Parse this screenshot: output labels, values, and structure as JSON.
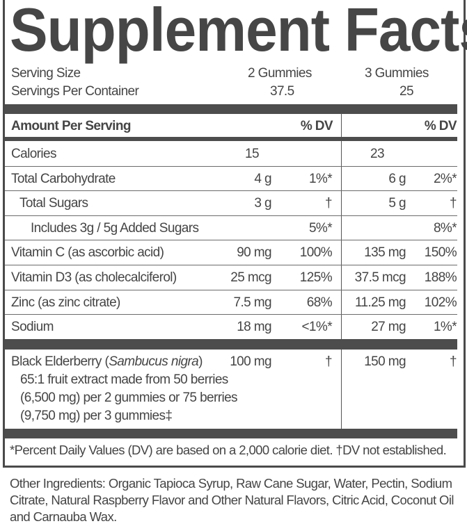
{
  "title": "Supplement Facts",
  "serving": {
    "size_label": "Serving Size",
    "size_1": "2 Gummies",
    "size_2": "3 Gummies",
    "per_container_label": "Servings Per Container",
    "per_container_1": "37.5",
    "per_container_2": "25"
  },
  "header": {
    "amount_label": "Amount Per Serving",
    "dv_1": "% DV",
    "dv_2": "% DV"
  },
  "rows": [
    {
      "name": "Calories",
      "amt1": "15",
      "dv1": "",
      "amt2": "23",
      "dv2": ""
    },
    {
      "name": "Total Carbohydrate",
      "amt1": "4 g",
      "dv1": "1%*",
      "amt2": "6 g",
      "dv2": "2%*"
    },
    {
      "name": "Total Sugars",
      "amt1": "3 g",
      "dv1": "†",
      "amt2": "5 g",
      "dv2": "†"
    },
    {
      "name": "Includes 3g / 5g Added Sugars",
      "amt1": "",
      "dv1": "5%*",
      "amt2": "",
      "dv2": "8%*"
    },
    {
      "name": "Vitamin C (as ascorbic acid)",
      "amt1": "90 mg",
      "dv1": "100%",
      "amt2": "135 mg",
      "dv2": "150%"
    },
    {
      "name": "Vitamin D3 (as cholecalciferol)",
      "amt1": "25 mcg",
      "dv1": "125%",
      "amt2": "37.5 mcg",
      "dv2": "188%"
    },
    {
      "name": "Zinc (as zinc citrate)",
      "amt1": "7.5 mg",
      "dv1": "68%",
      "amt2": "11.25 mg",
      "dv2": "102%"
    },
    {
      "name": "Sodium",
      "amt1": "18 mg",
      "dv1": "<1%*",
      "amt2": "27 mg",
      "dv2": "1%*"
    }
  ],
  "elderberry": {
    "name": "Black Elderberry (",
    "latin": "Sambucus nigra",
    "close": ")",
    "amt1": "100 mg",
    "dv1": "†",
    "amt2": "150 mg",
    "dv2": "†",
    "desc": [
      "65:1 fruit extract made from 50 berries",
      "(6,500 mg) per 2 gummies or 75 berries",
      "(9,750 mg) per 3 gummies‡"
    ]
  },
  "footnote": "*Percent Daily Values (DV) are based on a 2,000 calorie diet. †DV not established.",
  "other_ingredients": "Other Ingredients: Organic Tapioca Syrup, Raw Cane Sugar, Water, Pectin, Sodium Citrate, Natural Raspberry Flavor and Other Natural Flavors, Citric Acid, Coconut Oil and Carnauba Wax."
}
